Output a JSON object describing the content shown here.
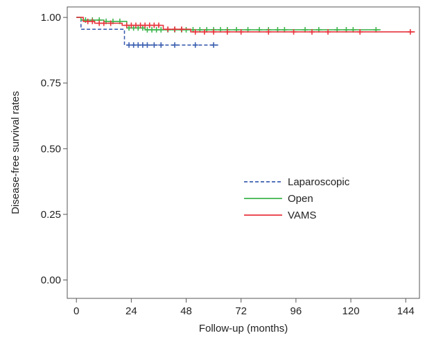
{
  "chart_data": {
    "type": "line",
    "subtype": "kaplan-meier",
    "title": "",
    "xlabel": "Follow-up (months)",
    "ylabel": "Disease-free survival rates",
    "xlim": [
      -4,
      150
    ],
    "ylim": [
      -0.07,
      1.04
    ],
    "xticks": [
      0,
      24,
      48,
      72,
      96,
      120,
      144
    ],
    "xtick_labels": [
      "0",
      "24",
      "48",
      "72",
      "96",
      "120",
      "144"
    ],
    "yticks": [
      0.0,
      0.25,
      0.5,
      0.75,
      1.0
    ],
    "ytick_labels": [
      "0.00",
      "0.25",
      "0.50",
      "0.75",
      "1.00"
    ],
    "grid": false,
    "legend_position": "right-center",
    "series": [
      {
        "name": "Laparoscopic",
        "color": "#3b5fb0",
        "dash": "dashed",
        "steps": [
          [
            0,
            1.0
          ],
          [
            2,
            1.0
          ],
          [
            2,
            0.955
          ],
          [
            21,
            0.955
          ],
          [
            21,
            0.895
          ],
          [
            62,
            0.895
          ]
        ],
        "censored": [
          [
            23,
            0.895
          ],
          [
            25,
            0.895
          ],
          [
            27,
            0.895
          ],
          [
            29,
            0.895
          ],
          [
            31,
            0.895
          ],
          [
            34,
            0.895
          ],
          [
            37,
            0.895
          ],
          [
            43,
            0.895
          ],
          [
            52,
            0.895
          ],
          [
            60,
            0.895
          ]
        ]
      },
      {
        "name": "Open",
        "color": "#3cb44b",
        "dash": "solid",
        "steps": [
          [
            0,
            1.0
          ],
          [
            2,
            1.0
          ],
          [
            2,
            0.99
          ],
          [
            12,
            0.99
          ],
          [
            12,
            0.985
          ],
          [
            22,
            0.985
          ],
          [
            22,
            0.96
          ],
          [
            30,
            0.96
          ],
          [
            30,
            0.953
          ],
          [
            133,
            0.953
          ]
        ],
        "censored": [
          [
            4,
            0.99
          ],
          [
            7,
            0.99
          ],
          [
            10,
            0.99
          ],
          [
            13,
            0.985
          ],
          [
            16,
            0.985
          ],
          [
            19,
            0.985
          ],
          [
            23,
            0.96
          ],
          [
            25,
            0.96
          ],
          [
            27,
            0.96
          ],
          [
            29,
            0.96
          ],
          [
            31,
            0.953
          ],
          [
            33,
            0.953
          ],
          [
            35,
            0.953
          ],
          [
            37,
            0.953
          ],
          [
            40,
            0.953
          ],
          [
            43,
            0.953
          ],
          [
            46,
            0.953
          ],
          [
            48,
            0.953
          ],
          [
            51,
            0.953
          ],
          [
            54,
            0.953
          ],
          [
            57,
            0.953
          ],
          [
            60,
            0.953
          ],
          [
            63,
            0.953
          ],
          [
            66,
            0.953
          ],
          [
            70,
            0.953
          ],
          [
            75,
            0.953
          ],
          [
            80,
            0.953
          ],
          [
            84,
            0.953
          ],
          [
            88,
            0.953
          ],
          [
            91,
            0.953
          ],
          [
            100,
            0.953
          ],
          [
            106,
            0.953
          ],
          [
            114,
            0.953
          ],
          [
            118,
            0.953
          ],
          [
            121,
            0.953
          ],
          [
            131,
            0.953
          ]
        ]
      },
      {
        "name": "VAMS",
        "color": "#e8323c",
        "dash": "solid",
        "steps": [
          [
            0,
            1.0
          ],
          [
            3,
            1.0
          ],
          [
            3,
            0.985
          ],
          [
            8,
            0.985
          ],
          [
            8,
            0.978
          ],
          [
            20,
            0.978
          ],
          [
            20,
            0.97
          ],
          [
            38,
            0.97
          ],
          [
            38,
            0.955
          ],
          [
            50,
            0.955
          ],
          [
            50,
            0.945
          ],
          [
            148,
            0.945
          ]
        ],
        "censored": [
          [
            5,
            0.985
          ],
          [
            7,
            0.985
          ],
          [
            10,
            0.978
          ],
          [
            12,
            0.978
          ],
          [
            15,
            0.978
          ],
          [
            22,
            0.97
          ],
          [
            24,
            0.97
          ],
          [
            26,
            0.97
          ],
          [
            28,
            0.97
          ],
          [
            30,
            0.97
          ],
          [
            32,
            0.97
          ],
          [
            34,
            0.97
          ],
          [
            36,
            0.97
          ],
          [
            40,
            0.955
          ],
          [
            43,
            0.955
          ],
          [
            46,
            0.955
          ],
          [
            52,
            0.945
          ],
          [
            56,
            0.945
          ],
          [
            60,
            0.945
          ],
          [
            66,
            0.945
          ],
          [
            72,
            0.945
          ],
          [
            84,
            0.945
          ],
          [
            95,
            0.945
          ],
          [
            103,
            0.945
          ],
          [
            110,
            0.945
          ],
          [
            124,
            0.945
          ],
          [
            146,
            0.945
          ]
        ]
      }
    ]
  }
}
